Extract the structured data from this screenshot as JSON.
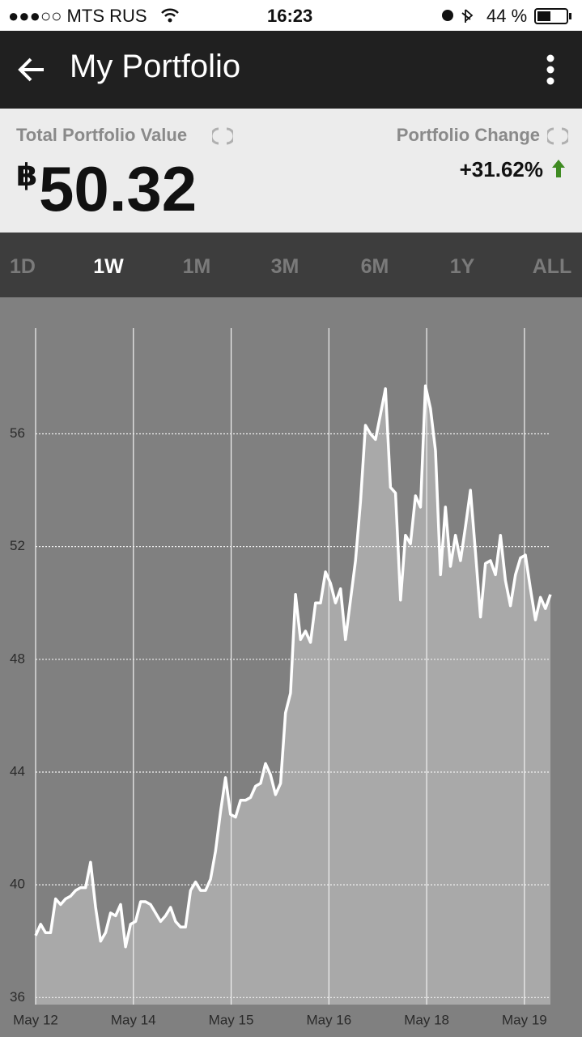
{
  "status_bar": {
    "carrier": "●●●○○ MTS RUS",
    "time": "16:23",
    "battery": "44 %"
  },
  "app_bar": {
    "title": "My Portfolio"
  },
  "summary": {
    "value_label": "Total Portfolio Value",
    "currency": "฿",
    "value": "50.32",
    "change_label": "Portfolio Change",
    "change": "+31.62%"
  },
  "tabs": {
    "items": [
      "1D",
      "1W",
      "1M",
      "3M",
      "6M",
      "1Y",
      "ALL"
    ],
    "selected": 1
  },
  "chart_data": {
    "type": "line",
    "color": "#ffffff",
    "area_color": "#a9a9a9",
    "values": [
      38.2,
      38.6,
      38.3,
      38.3,
      39.5,
      39.3,
      39.5,
      39.6,
      39.8,
      39.9,
      39.9,
      40.8,
      39.2,
      38.0,
      38.3,
      39.0,
      38.9,
      39.3,
      37.8,
      38.6,
      38.7,
      39.4,
      39.4,
      39.3,
      39.0,
      38.7,
      38.9,
      39.2,
      38.7,
      38.5,
      38.5,
      39.8,
      40.1,
      39.8,
      39.8,
      40.2,
      41.2,
      42.6,
      43.8,
      42.5,
      42.4,
      43.0,
      43.0,
      43.1,
      43.5,
      43.6,
      44.3,
      43.9,
      43.2,
      43.6,
      46.1,
      46.8,
      50.3,
      48.7,
      49.0,
      48.6,
      50.0,
      50.0,
      51.1,
      50.7,
      50.0,
      50.5,
      48.7,
      50.1,
      51.5,
      53.6,
      56.3,
      56.0,
      55.8,
      56.7,
      57.6,
      54.1,
      53.9,
      50.1,
      52.4,
      52.1,
      53.8,
      53.4,
      57.7,
      56.9,
      55.4,
      51.0,
      53.4,
      51.3,
      52.4,
      51.5,
      52.7,
      54.0,
      51.8,
      49.5,
      51.4,
      51.5,
      51.0,
      52.4,
      50.8,
      49.9,
      51.0,
      51.6,
      51.7,
      50.5,
      49.4,
      50.2,
      49.8,
      50.3
    ],
    "xlim": [
      0,
      103
    ],
    "xticks": [
      {
        "value": 0,
        "label": "May 12"
      },
      {
        "value": 19.56,
        "label": "May 14"
      },
      {
        "value": 39.12,
        "label": "May 15"
      },
      {
        "value": 58.68,
        "label": "May 16"
      },
      {
        "value": 78.24,
        "label": "May 18"
      },
      {
        "value": 97.8,
        "label": "May 19"
      }
    ],
    "ylim": [
      35.75,
      59.75
    ],
    "yticks": [
      36,
      40,
      44,
      48,
      52,
      56
    ],
    "grid": true
  }
}
